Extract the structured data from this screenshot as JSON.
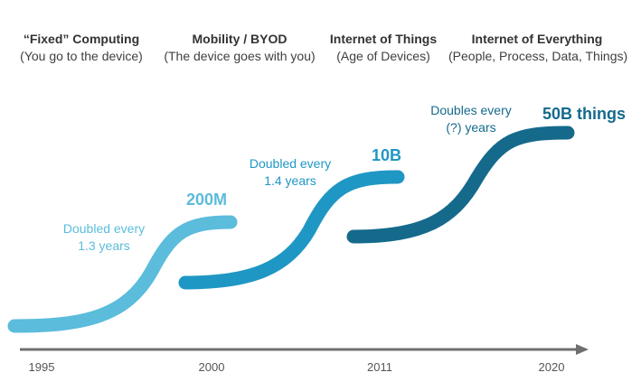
{
  "eras": [
    {
      "title": "“Fixed” Computing",
      "subtitle": "(You go to the device)"
    },
    {
      "title": "Mobility / BYOD",
      "subtitle": "(The device goes with you)"
    },
    {
      "title": "Internet of Things",
      "subtitle": "(Age of Devices)"
    },
    {
      "title": "Internet of Everything",
      "subtitle": "(People, Process, Data, Things)"
    }
  ],
  "phases": [
    {
      "note_line1": "Doubled every",
      "note_line2": "1.3 years",
      "value": "200M",
      "color": "#5bbcdc"
    },
    {
      "note_line1": "Doubled every",
      "note_line2": "1.4 years",
      "value": "10B",
      "color": "#1f97c4"
    },
    {
      "note_line1": "Doubles every",
      "note_line2": "(?) years",
      "value": "50B things",
      "color": "#156a8c"
    }
  ],
  "timeline": {
    "years": [
      "1995",
      "2000",
      "2011",
      "2020"
    ],
    "axis_color": "#6f6f6f"
  }
}
